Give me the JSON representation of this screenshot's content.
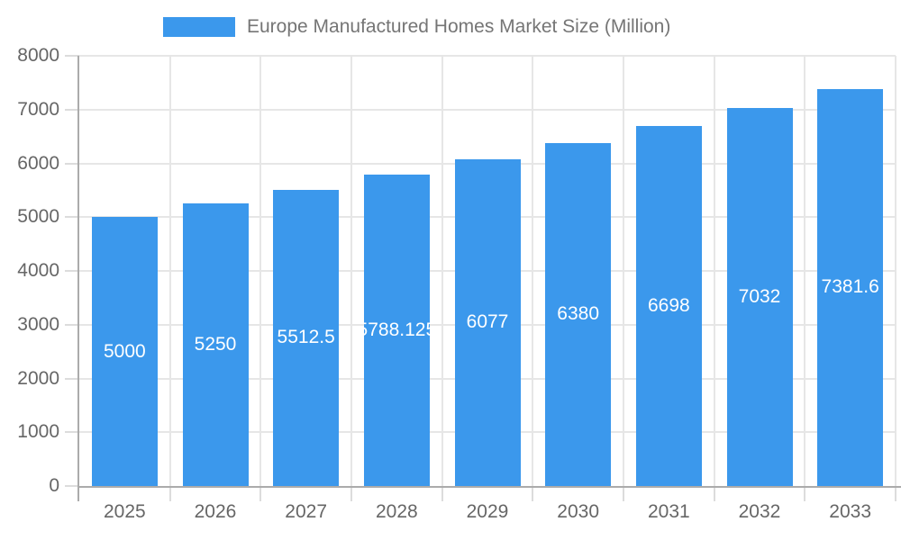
{
  "legend": {
    "label": "Europe Manufactured Homes Market Size (Million)",
    "swatch_color": "#3B98EC"
  },
  "chart_data": {
    "type": "bar",
    "title": "Europe Manufactured Homes Market Size (Million)",
    "categories": [
      "2025",
      "2026",
      "2027",
      "2028",
      "2029",
      "2030",
      "2031",
      "2032",
      "2033"
    ],
    "values": [
      5000,
      5250,
      5512.5,
      5788.125,
      6077,
      6380,
      6698,
      7032,
      7381.6
    ],
    "value_labels": [
      "5000",
      "5250",
      "5512.5",
      "5788.125",
      "6077",
      "6380",
      "6698",
      "7032",
      "7381.6"
    ],
    "xlabel": "",
    "ylabel": "",
    "ylim": [
      0,
      8000
    ],
    "yticks": [
      0,
      1000,
      2000,
      3000,
      4000,
      5000,
      6000,
      7000,
      8000
    ],
    "grid": true,
    "legend_position": "top",
    "bar_color": "#3B98EC",
    "value_label_color": "#FFFFFF",
    "grid_color": "#E6E6E6",
    "axis_color": "#ABABAB",
    "tick_color": "#DCDCDC",
    "axis_label_color": "#666666",
    "title_color": "#757575"
  }
}
